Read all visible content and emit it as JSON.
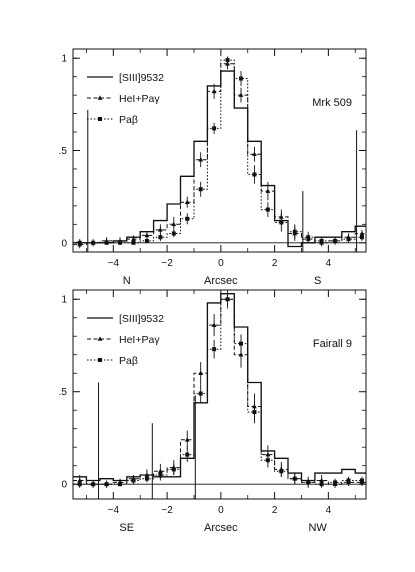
{
  "chart_data": [
    {
      "type": "line",
      "step": true,
      "annotation": "Mrk 509",
      "xlabel": {
        "left": "N",
        "center": "Arcsec",
        "right": "S"
      },
      "xlim": [
        -5.5,
        5.4
      ],
      "ylim": [
        -0.05,
        1.05
      ],
      "xticks": [
        -4,
        -2,
        0,
        2,
        4
      ],
      "xtick_labels": [
        "−4",
        "−2",
        "0",
        "2",
        "4"
      ],
      "yticks": [
        0,
        0.5,
        1
      ],
      "ytick_labels": [
        "0",
        ".5",
        "1"
      ],
      "legend_position": "top-left",
      "series": [
        {
          "name": "[SIII]9532",
          "style": "solid",
          "marker": "none",
          "x": [
            -5.5,
            -5.0,
            -4.5,
            -4.0,
            -3.5,
            -3.0,
            -2.5,
            -2.0,
            -1.5,
            -1.0,
            -0.5,
            0.0,
            0.5,
            1.0,
            1.5,
            2.0,
            2.5,
            3.0,
            3.5,
            4.0,
            4.5,
            5.0
          ],
          "y": [
            0.0,
            0.0,
            0.0,
            0.01,
            0.03,
            0.06,
            0.12,
            0.21,
            0.36,
            0.55,
            0.85,
            0.93,
            0.73,
            0.55,
            0.31,
            0.12,
            -0.02,
            0.0,
            0.03,
            0.03,
            0.06,
            0.09
          ]
        },
        {
          "name": "HeI+Paγ",
          "style": "dashed",
          "marker": "triangle",
          "x": [
            -5.5,
            -5.0,
            -4.5,
            -4.0,
            -3.5,
            -3.0,
            -2.5,
            -2.0,
            -1.5,
            -1.0,
            -0.5,
            0.0,
            0.5,
            1.0,
            1.5,
            2.0,
            2.5,
            3.0,
            3.5,
            4.0,
            4.5,
            5.0
          ],
          "y": [
            -0.01,
            0.0,
            0.01,
            0.01,
            0.02,
            0.04,
            0.07,
            0.1,
            0.22,
            0.45,
            0.82,
            0.97,
            0.8,
            0.48,
            0.28,
            0.14,
            0.05,
            0.02,
            0.0,
            0.01,
            0.03,
            0.05
          ],
          "errors": [
            0.02,
            0.02,
            0.02,
            0.02,
            0.02,
            0.02,
            0.03,
            0.04,
            0.03,
            0.04,
            0.04,
            0.03,
            0.04,
            0.04,
            0.05,
            0.04,
            0.04,
            0.02,
            0.02,
            0.02,
            0.02,
            0.02
          ]
        },
        {
          "name": "Paβ",
          "style": "dotted",
          "marker": "square",
          "x": [
            -5.5,
            -5.0,
            -4.5,
            -4.0,
            -3.5,
            -3.0,
            -2.5,
            -2.0,
            -1.5,
            -1.0,
            -0.5,
            0.0,
            0.5,
            1.0,
            1.5,
            2.0,
            2.5,
            3.0,
            3.5,
            4.0,
            4.5,
            5.0
          ],
          "y": [
            0.0,
            0.0,
            0.0,
            0.0,
            0.0,
            0.01,
            0.03,
            0.05,
            0.13,
            0.29,
            0.62,
            0.99,
            0.89,
            0.37,
            0.18,
            0.11,
            0.06,
            0.03,
            0.01,
            0.01,
            0.02,
            0.03
          ],
          "errors": [
            0.02,
            0.01,
            0.01,
            0.01,
            0.01,
            0.01,
            0.02,
            0.02,
            0.03,
            0.04,
            0.03,
            0.02,
            0.04,
            0.05,
            0.04,
            0.05,
            0.04,
            0.03,
            0.02,
            0.02,
            0.02,
            0.02
          ]
        }
      ],
      "spikes": [
        {
          "x": -4.95,
          "y0": -0.05,
          "y1": 0.72
        },
        {
          "x": 3.05,
          "y0": -0.05,
          "y1": 0.28
        },
        {
          "x": 5.05,
          "y0": -0.05,
          "y1": 0.61
        }
      ]
    },
    {
      "type": "line",
      "step": true,
      "annotation": "Fairall 9",
      "xlabel": {
        "left": "SE",
        "center": "Arcsec",
        "right": "NW"
      },
      "xlim": [
        -5.5,
        5.4
      ],
      "ylim": [
        -0.08,
        1.05
      ],
      "xticks": [
        -4,
        -2,
        0,
        2,
        4
      ],
      "xtick_labels": [
        "−4",
        "−2",
        "0",
        "2",
        "4"
      ],
      "yticks": [
        0,
        0.5,
        1
      ],
      "ytick_labels": [
        "0",
        ".5",
        "1"
      ],
      "legend_position": "top-left",
      "series": [
        {
          "name": "[SIII]9532",
          "style": "solid",
          "marker": "none",
          "x": [
            -5.5,
            -5.0,
            -4.5,
            -4.0,
            -3.5,
            -3.0,
            -2.5,
            -2.0,
            -1.5,
            -1.0,
            -0.5,
            0.0,
            0.5,
            1.0,
            1.5,
            2.0,
            2.5,
            3.0,
            3.5,
            4.0,
            4.5,
            5.0
          ],
          "y": [
            0.04,
            0.02,
            0.03,
            0.02,
            0.04,
            0.05,
            0.04,
            0.04,
            0.14,
            0.44,
            0.98,
            1.03,
            0.85,
            0.55,
            0.18,
            0.14,
            0.06,
            0.02,
            0.06,
            0.06,
            0.08,
            0.06
          ]
        },
        {
          "name": "HeI+Paγ",
          "style": "dashed",
          "marker": "triangle",
          "x": [
            -5.5,
            -5.0,
            -4.5,
            -4.0,
            -3.5,
            -3.0,
            -2.5,
            -2.0,
            -1.5,
            -1.0,
            -0.5,
            0.0,
            0.5,
            1.0,
            1.5,
            2.0,
            2.5,
            3.0,
            3.5,
            4.0,
            4.5,
            5.0
          ],
          "y": [
            0.02,
            0.0,
            0.0,
            0.01,
            0.03,
            0.05,
            0.07,
            0.09,
            0.24,
            0.6,
            0.86,
            1.0,
            0.7,
            0.42,
            0.16,
            0.08,
            0.03,
            0.01,
            0.02,
            0.0,
            0.01,
            0.01
          ],
          "errors": [
            0.03,
            0.02,
            0.02,
            0.02,
            0.02,
            0.03,
            0.04,
            0.04,
            0.05,
            0.06,
            0.06,
            0.05,
            0.07,
            0.07,
            0.05,
            0.04,
            0.03,
            0.03,
            0.03,
            0.02,
            0.02,
            0.02
          ]
        },
        {
          "name": "Paβ",
          "style": "dotted",
          "marker": "square",
          "x": [
            -5.5,
            -5.0,
            -4.5,
            -4.0,
            -3.5,
            -3.0,
            -2.5,
            -2.0,
            -1.5,
            -1.0,
            -0.5,
            0.0,
            0.5,
            1.0,
            1.5,
            2.0,
            2.5,
            3.0,
            3.5,
            4.0,
            4.5,
            5.0
          ],
          "y": [
            0.0,
            0.0,
            0.0,
            0.0,
            0.02,
            0.03,
            0.05,
            0.08,
            0.16,
            0.49,
            0.73,
            1.0,
            0.76,
            0.39,
            0.13,
            0.07,
            0.03,
            0.01,
            0.0,
            0.01,
            0.02,
            0.02
          ],
          "errors": [
            0.02,
            0.01,
            0.01,
            0.01,
            0.02,
            0.02,
            0.03,
            0.03,
            0.04,
            0.05,
            0.05,
            0.03,
            0.05,
            0.06,
            0.04,
            0.03,
            0.03,
            0.02,
            0.02,
            0.02,
            0.02,
            0.02
          ]
        }
      ],
      "spikes": [
        {
          "x": -4.55,
          "y0": -0.08,
          "y1": 0.55
        },
        {
          "x": -2.55,
          "y0": -0.08,
          "y1": 0.33
        },
        {
          "x": -0.95,
          "y0": -0.08,
          "y1": 0.48
        }
      ]
    }
  ]
}
